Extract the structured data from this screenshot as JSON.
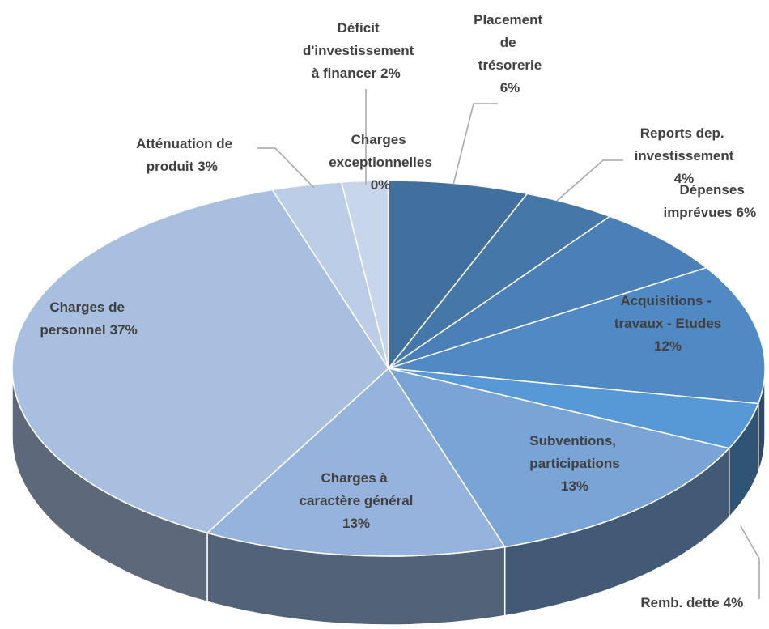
{
  "chart_data": {
    "type": "pie3d",
    "categories": [
      "Placement de trésorerie",
      "Reports dep. investissement",
      "Dépenses imprévues",
      "Acquisitions - travaux - Etudes",
      "Remb. dette",
      "Subventions, participations",
      "Charges à caractère général",
      "Charges de personnel",
      "Atténuation de produit",
      "Déficit d'investissement à financer",
      "Charges exceptionnelles"
    ],
    "values": [
      6,
      4,
      6,
      12,
      4,
      13,
      13,
      37,
      3,
      2,
      0
    ],
    "value_labels": [
      "6%",
      "4%",
      "6%",
      "12%",
      "4%",
      "13%",
      "13%",
      "37%",
      "3%",
      "2%",
      "0%"
    ],
    "colors": [
      "#41709f",
      "#4677a9",
      "#4a80b7",
      "#5089c4",
      "#5699d6",
      "#7aa4d6",
      "#95b3dc",
      "#a9bfe0",
      "#bccde8",
      "#c8d6ec",
      "#d0dcef"
    ]
  }
}
